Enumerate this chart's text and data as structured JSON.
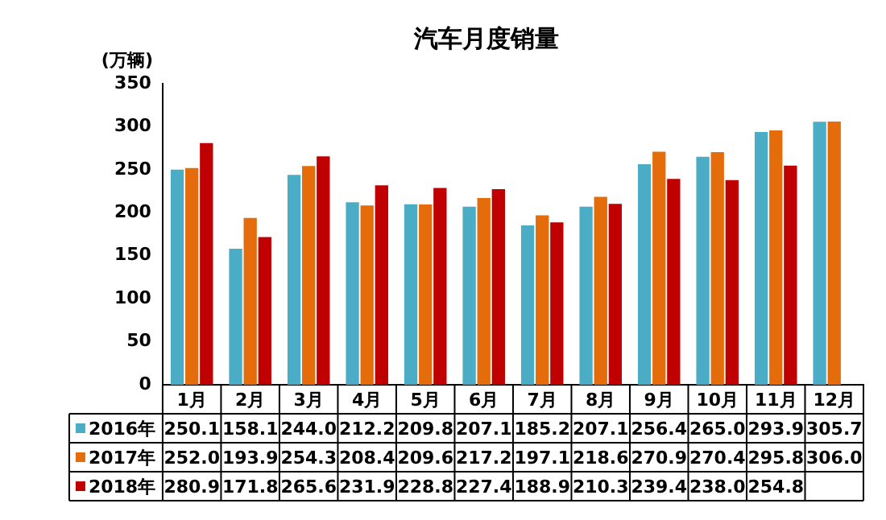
{
  "chart_data": {
    "type": "bar",
    "title": "汽车月度销量",
    "ylabel": "(万辆)",
    "categories": [
      "1月",
      "2月",
      "3月",
      "4月",
      "5月",
      "6月",
      "7月",
      "8月",
      "9月",
      "10月",
      "11月",
      "12月"
    ],
    "series": [
      {
        "name": "2016年",
        "color": "#4bacc6",
        "values": [
          250.1,
          158.1,
          244.0,
          212.2,
          209.8,
          207.1,
          185.2,
          207.1,
          256.4,
          265.0,
          293.9,
          305.7
        ],
        "value_labels": [
          "250.1",
          "158.1",
          "244.0",
          "212.2",
          "209.8",
          "207.1",
          "185.2",
          "207.1",
          "256.4",
          "265.0",
          "293.9",
          "305.7"
        ]
      },
      {
        "name": "2017年",
        "color": "#e46c0a",
        "values": [
          252.0,
          193.9,
          254.3,
          208.4,
          209.6,
          217.2,
          197.1,
          218.6,
          270.9,
          270.4,
          295.8,
          306.0
        ],
        "value_labels": [
          "252.0",
          "193.9",
          "254.3",
          "208.4",
          "209.6",
          "217.2",
          "197.1",
          "218.6",
          "270.9",
          "270.4",
          "295.8",
          "306.0"
        ]
      },
      {
        "name": "2018年",
        "color": "#c00000",
        "values": [
          280.9,
          171.8,
          265.6,
          231.9,
          228.8,
          227.4,
          188.9,
          210.3,
          239.4,
          238.0,
          254.8,
          null
        ],
        "value_labels": [
          "280.9",
          "171.8",
          "265.6",
          "231.9",
          "228.8",
          "227.4",
          "188.9",
          "210.3",
          "239.4",
          "238.0",
          "254.8",
          null
        ]
      }
    ],
    "ylim": [
      0,
      350
    ],
    "yticks": [
      0,
      50,
      100,
      150,
      200,
      250,
      300,
      350
    ],
    "grid": false,
    "legend": "bottom"
  }
}
